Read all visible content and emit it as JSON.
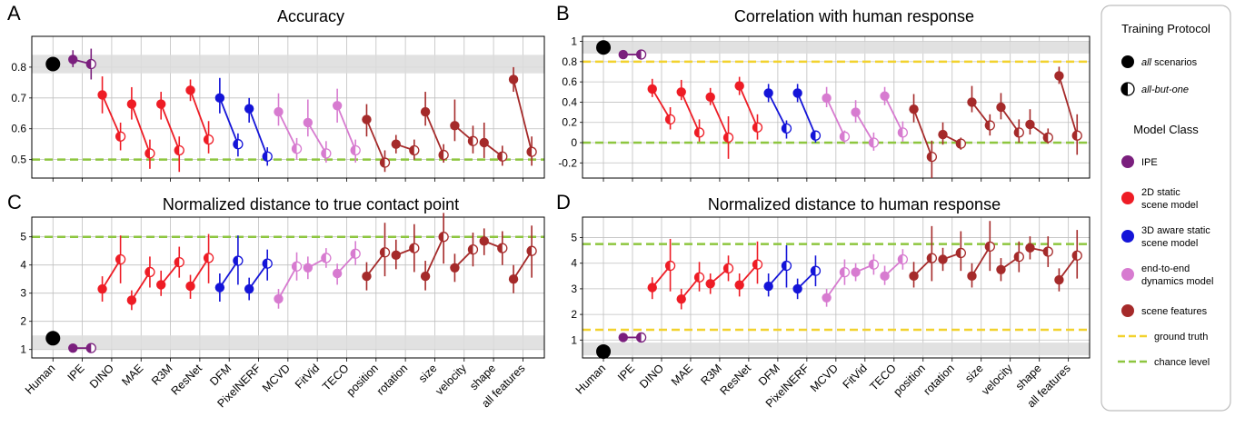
{
  "categories": [
    "Human",
    "IPE",
    "DINO",
    "MAE",
    "R3M",
    "ResNet",
    "DFM",
    "PixelNERF",
    "MCVD",
    "FitVid",
    "TECO",
    "position",
    "rotation",
    "size",
    "velocity",
    "shape",
    "all features"
  ],
  "colors": {
    "IPE": "#7a1f7d",
    "2D": "#ee1c25",
    "3D": "#1414d8",
    "E2E": "#d77bd0",
    "scene": "#a52a2a",
    "human": "#000000",
    "gt": "#f2d22e",
    "chance": "#8dc63f",
    "band": "#dcdcdc",
    "grid": "#bfbfbf"
  },
  "model_class_of": [
    "human",
    "IPE",
    "2D",
    "2D",
    "2D",
    "2D",
    "3D",
    "3D",
    "E2E",
    "E2E",
    "E2E",
    "scene",
    "scene",
    "scene",
    "scene",
    "scene",
    "scene"
  ],
  "chart_data": [
    {
      "type": "scatter",
      "panel_letter": "A",
      "title": "Accuracy",
      "ylim": [
        0.44,
        0.9
      ],
      "yticks": [
        0.5,
        0.6,
        0.7,
        0.8
      ],
      "ytick_labels": [
        "0.5",
        "0.6",
        "0.7",
        "0.8"
      ],
      "band": [
        0.78,
        0.84
      ],
      "hlines": [
        {
          "name": "chance level",
          "y": 0.5
        }
      ],
      "all": [
        [
          0.81,
          0.78,
          0.84
        ],
        [
          0.825,
          0.8,
          0.855
        ],
        [
          0.71,
          0.65,
          0.77
        ],
        [
          0.68,
          0.63,
          0.735
        ],
        [
          0.68,
          0.63,
          0.72
        ],
        [
          0.725,
          0.69,
          0.76
        ],
        [
          0.7,
          0.65,
          0.765
        ],
        [
          0.665,
          0.62,
          0.7
        ],
        [
          0.655,
          0.61,
          0.715
        ],
        [
          0.62,
          0.575,
          0.695
        ],
        [
          0.675,
          0.62,
          0.73
        ],
        [
          0.63,
          0.575,
          0.68
        ],
        [
          0.55,
          0.52,
          0.58
        ],
        [
          0.655,
          0.61,
          0.72
        ],
        [
          0.61,
          0.56,
          0.695
        ],
        [
          0.555,
          0.505,
          0.62
        ],
        [
          0.76,
          0.72,
          0.8
        ]
      ],
      "abo": [
        null,
        [
          0.81,
          0.76,
          0.86
        ],
        [
          0.575,
          0.53,
          0.62
        ],
        [
          0.52,
          0.47,
          0.565
        ],
        [
          0.53,
          0.46,
          0.575
        ],
        [
          0.565,
          0.52,
          0.625
        ],
        [
          0.55,
          0.51,
          0.585
        ],
        [
          0.51,
          0.48,
          0.54
        ],
        [
          0.535,
          0.5,
          0.57
        ],
        [
          0.52,
          0.49,
          0.56
        ],
        [
          0.53,
          0.49,
          0.565
        ],
        [
          0.49,
          0.46,
          0.53
        ],
        [
          0.53,
          0.5,
          0.565
        ],
        [
          0.515,
          0.49,
          0.55
        ],
        [
          0.56,
          0.52,
          0.61
        ],
        [
          0.51,
          0.48,
          0.545
        ],
        [
          0.525,
          0.48,
          0.575
        ]
      ]
    },
    {
      "type": "scatter",
      "panel_letter": "B",
      "title": "Correlation with human response",
      "ylim": [
        -0.35,
        1.05
      ],
      "yticks": [
        -0.2,
        0,
        0.2,
        0.4,
        0.6,
        0.8,
        1
      ],
      "ytick_labels": [
        "-0.2",
        "0",
        "0.2",
        "0.4",
        "0.6",
        "0.8",
        "1"
      ],
      "band": [
        0.88,
        1.0
      ],
      "hlines": [
        {
          "name": "ground truth",
          "y": 0.8
        },
        {
          "name": "chance level",
          "y": 0.0
        }
      ],
      "all": [
        [
          0.94,
          0.94,
          0.94
        ],
        [
          0.87,
          0.87,
          0.87
        ],
        [
          0.53,
          0.45,
          0.63
        ],
        [
          0.5,
          0.42,
          0.62
        ],
        [
          0.45,
          0.37,
          0.54
        ],
        [
          0.56,
          0.47,
          0.65
        ],
        [
          0.49,
          0.4,
          0.58
        ],
        [
          0.49,
          0.4,
          0.58
        ],
        [
          0.44,
          0.35,
          0.55
        ],
        [
          0.3,
          0.2,
          0.42
        ],
        [
          0.46,
          0.37,
          0.55
        ],
        [
          0.33,
          0.2,
          0.48
        ],
        [
          0.08,
          -0.02,
          0.2
        ],
        [
          0.4,
          0.3,
          0.56
        ],
        [
          0.35,
          0.23,
          0.49
        ],
        [
          0.18,
          0.08,
          0.33
        ],
        [
          0.66,
          0.58,
          0.75
        ]
      ],
      "abo": [
        null,
        [
          0.87,
          0.87,
          0.87
        ],
        [
          0.23,
          0.13,
          0.35
        ],
        [
          0.1,
          0.01,
          0.23
        ],
        [
          0.05,
          -0.16,
          0.26
        ],
        [
          0.15,
          0.03,
          0.28
        ],
        [
          0.14,
          0.04,
          0.22
        ],
        [
          0.07,
          0.0,
          0.12
        ],
        [
          0.06,
          0.0,
          0.12
        ],
        [
          0.0,
          -0.08,
          0.1
        ],
        [
          0.1,
          0.01,
          0.21
        ],
        [
          -0.14,
          -0.35,
          0.02
        ],
        [
          -0.01,
          -0.07,
          0.05
        ],
        [
          0.17,
          0.07,
          0.28
        ],
        [
          0.1,
          0.0,
          0.23
        ],
        [
          0.05,
          -0.01,
          0.14
        ],
        [
          0.07,
          -0.12,
          0.28
        ]
      ]
    },
    {
      "type": "scatter",
      "panel_letter": "C",
      "title": "Normalized distance to true contact point",
      "ylim": [
        0.7,
        5.7
      ],
      "yticks": [
        1,
        2,
        3,
        4,
        5
      ],
      "ytick_labels": [
        "1",
        "2",
        "3",
        "4",
        "5"
      ],
      "band": [
        1.0,
        1.5
      ],
      "hlines": [
        {
          "name": "chance level",
          "y": 5.0
        }
      ],
      "all": [
        [
          1.4,
          1.4,
          1.4
        ],
        [
          1.05,
          1.05,
          1.05
        ],
        [
          3.15,
          2.7,
          3.6
        ],
        [
          2.75,
          2.4,
          3.1
        ],
        [
          3.3,
          2.9,
          3.8
        ],
        [
          3.25,
          2.8,
          3.65
        ],
        [
          3.2,
          2.7,
          3.7
        ],
        [
          3.15,
          2.75,
          3.55
        ],
        [
          2.8,
          2.45,
          3.15
        ],
        [
          3.9,
          3.5,
          4.3
        ],
        [
          3.7,
          3.3,
          4.05
        ],
        [
          3.6,
          3.1,
          4.1
        ],
        [
          4.35,
          3.85,
          4.9
        ],
        [
          3.6,
          3.1,
          4.15
        ],
        [
          3.9,
          3.4,
          4.4
        ],
        [
          4.85,
          4.35,
          5.3
        ],
        [
          3.5,
          3.0,
          4.0
        ]
      ],
      "abo": [
        null,
        [
          1.05,
          1.05,
          1.05
        ],
        [
          4.2,
          3.35,
          5.05
        ],
        [
          3.75,
          3.2,
          4.3
        ],
        [
          4.1,
          3.55,
          4.65
        ],
        [
          4.25,
          3.35,
          5.1
        ],
        [
          4.15,
          3.3,
          5.05
        ],
        [
          4.05,
          3.45,
          4.55
        ],
        [
          3.95,
          3.45,
          4.45
        ],
        [
          4.25,
          3.9,
          4.6
        ],
        [
          4.4,
          4.0,
          4.85
        ],
        [
          4.45,
          3.6,
          5.5
        ],
        [
          4.6,
          3.75,
          5.45
        ],
        [
          5.0,
          4.05,
          5.85
        ],
        [
          4.55,
          3.95,
          5.15
        ],
        [
          4.6,
          4.0,
          5.2
        ],
        [
          4.5,
          3.55,
          5.4
        ]
      ]
    },
    {
      "type": "scatter",
      "panel_letter": "D",
      "title": "Normalized distance to human response",
      "ylim": [
        0.3,
        5.8
      ],
      "yticks": [
        1,
        2,
        3,
        4,
        5
      ],
      "ytick_labels": [
        "1",
        "2",
        "3",
        "4",
        "5"
      ],
      "band": [
        0.4,
        0.9
      ],
      "hlines": [
        {
          "name": "ground truth",
          "y": 1.4
        },
        {
          "name": "chance level",
          "y": 4.75
        }
      ],
      "all": [
        [
          0.55,
          0.55,
          0.55
        ],
        [
          1.1,
          1.1,
          1.1
        ],
        [
          3.05,
          2.6,
          3.45
        ],
        [
          2.6,
          2.2,
          3.0
        ],
        [
          3.2,
          2.8,
          3.6
        ],
        [
          3.15,
          2.7,
          3.6
        ],
        [
          3.1,
          2.7,
          3.6
        ],
        [
          3.0,
          2.6,
          3.4
        ],
        [
          2.65,
          2.3,
          3.0
        ],
        [
          3.65,
          3.3,
          4.0
        ],
        [
          3.5,
          3.15,
          3.9
        ],
        [
          3.5,
          3.05,
          4.05
        ],
        [
          4.15,
          3.7,
          4.6
        ],
        [
          3.5,
          3.05,
          4.0
        ],
        [
          3.75,
          3.3,
          4.2
        ],
        [
          4.6,
          4.15,
          5.05
        ],
        [
          3.35,
          2.9,
          3.8
        ]
      ],
      "abo": [
        null,
        [
          1.1,
          1.1,
          1.1
        ],
        [
          3.9,
          2.9,
          4.95
        ],
        [
          3.45,
          2.9,
          4.05
        ],
        [
          3.8,
          3.3,
          4.3
        ],
        [
          3.95,
          3.2,
          4.85
        ],
        [
          3.9,
          3.05,
          4.7
        ],
        [
          3.7,
          3.1,
          4.3
        ],
        [
          3.65,
          3.15,
          4.15
        ],
        [
          3.95,
          3.55,
          4.35
        ],
        [
          4.15,
          3.75,
          4.55
        ],
        [
          4.2,
          3.3,
          5.45
        ],
        [
          4.4,
          3.7,
          5.25
        ],
        [
          4.65,
          3.7,
          5.65
        ],
        [
          4.25,
          3.65,
          4.85
        ],
        [
          4.45,
          3.85,
          5.05
        ],
        [
          4.3,
          3.4,
          5.3
        ]
      ]
    }
  ],
  "legend": {
    "training_title": "Training Protocol",
    "training_items": [
      {
        "label": "all",
        "suffix": " scenarios",
        "style": "full"
      },
      {
        "label": "all-but-one",
        "suffix": "",
        "style": "half"
      }
    ],
    "model_title": "Model Class",
    "model_items": [
      {
        "label1": "IPE",
        "label2": "",
        "color": "#7a1f7d"
      },
      {
        "label1": "2D static",
        "label2": "scene model",
        "color": "#ee1c25"
      },
      {
        "label1": "3D aware static",
        "label2": "scene model",
        "color": "#1414d8"
      },
      {
        "label1": "end-to-end",
        "label2": "dynamics model",
        "color": "#d77bd0"
      },
      {
        "label1": "scene features",
        "label2": "",
        "color": "#a52a2a"
      }
    ],
    "line_items": [
      {
        "label": "ground truth",
        "color": "#f2d22e"
      },
      {
        "label": "chance level",
        "color": "#8dc63f"
      }
    ]
  }
}
